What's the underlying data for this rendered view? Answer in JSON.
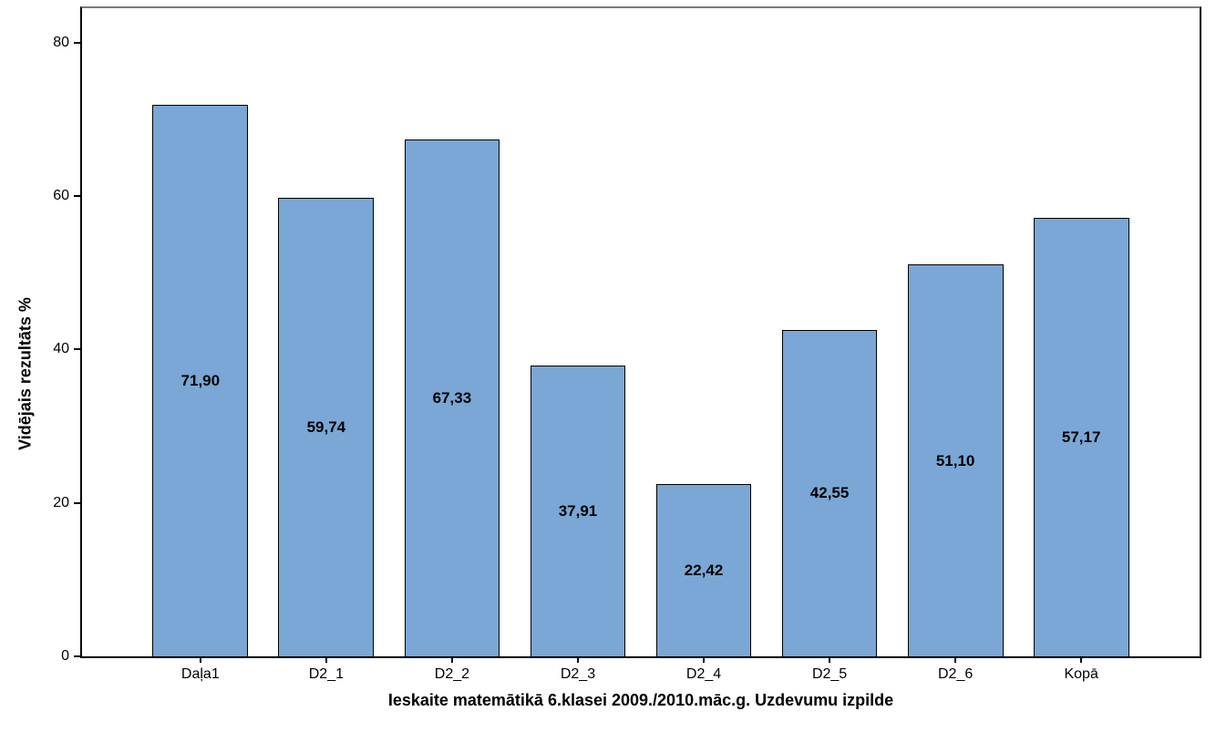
{
  "chart_data": {
    "type": "bar",
    "categories": [
      "Daļa1",
      "D2_1",
      "D2_2",
      "D2_3",
      "D2_4",
      "D2_5",
      "D2_6",
      "Kopā"
    ],
    "values": [
      71.9,
      59.74,
      67.33,
      37.91,
      22.42,
      42.55,
      51.1,
      57.17
    ],
    "value_labels": [
      "71,90",
      "59,74",
      "67,33",
      "37,91",
      "22,42",
      "42,55",
      "51,10",
      "57,17"
    ],
    "title": "",
    "xlabel": "Ieskaite matemātikā 6.klasei 2009./2010.māc.g. Uzdevumu izpilde",
    "ylabel": "Vidējais rezultāts %",
    "ylim": [
      0,
      84.5
    ],
    "yticks": [
      0,
      20,
      40,
      60,
      80
    ],
    "grid": false,
    "legend": null,
    "bar_color": "#7AA7D5",
    "bar_border_color": "#000000",
    "value_label_color": "#000000"
  }
}
